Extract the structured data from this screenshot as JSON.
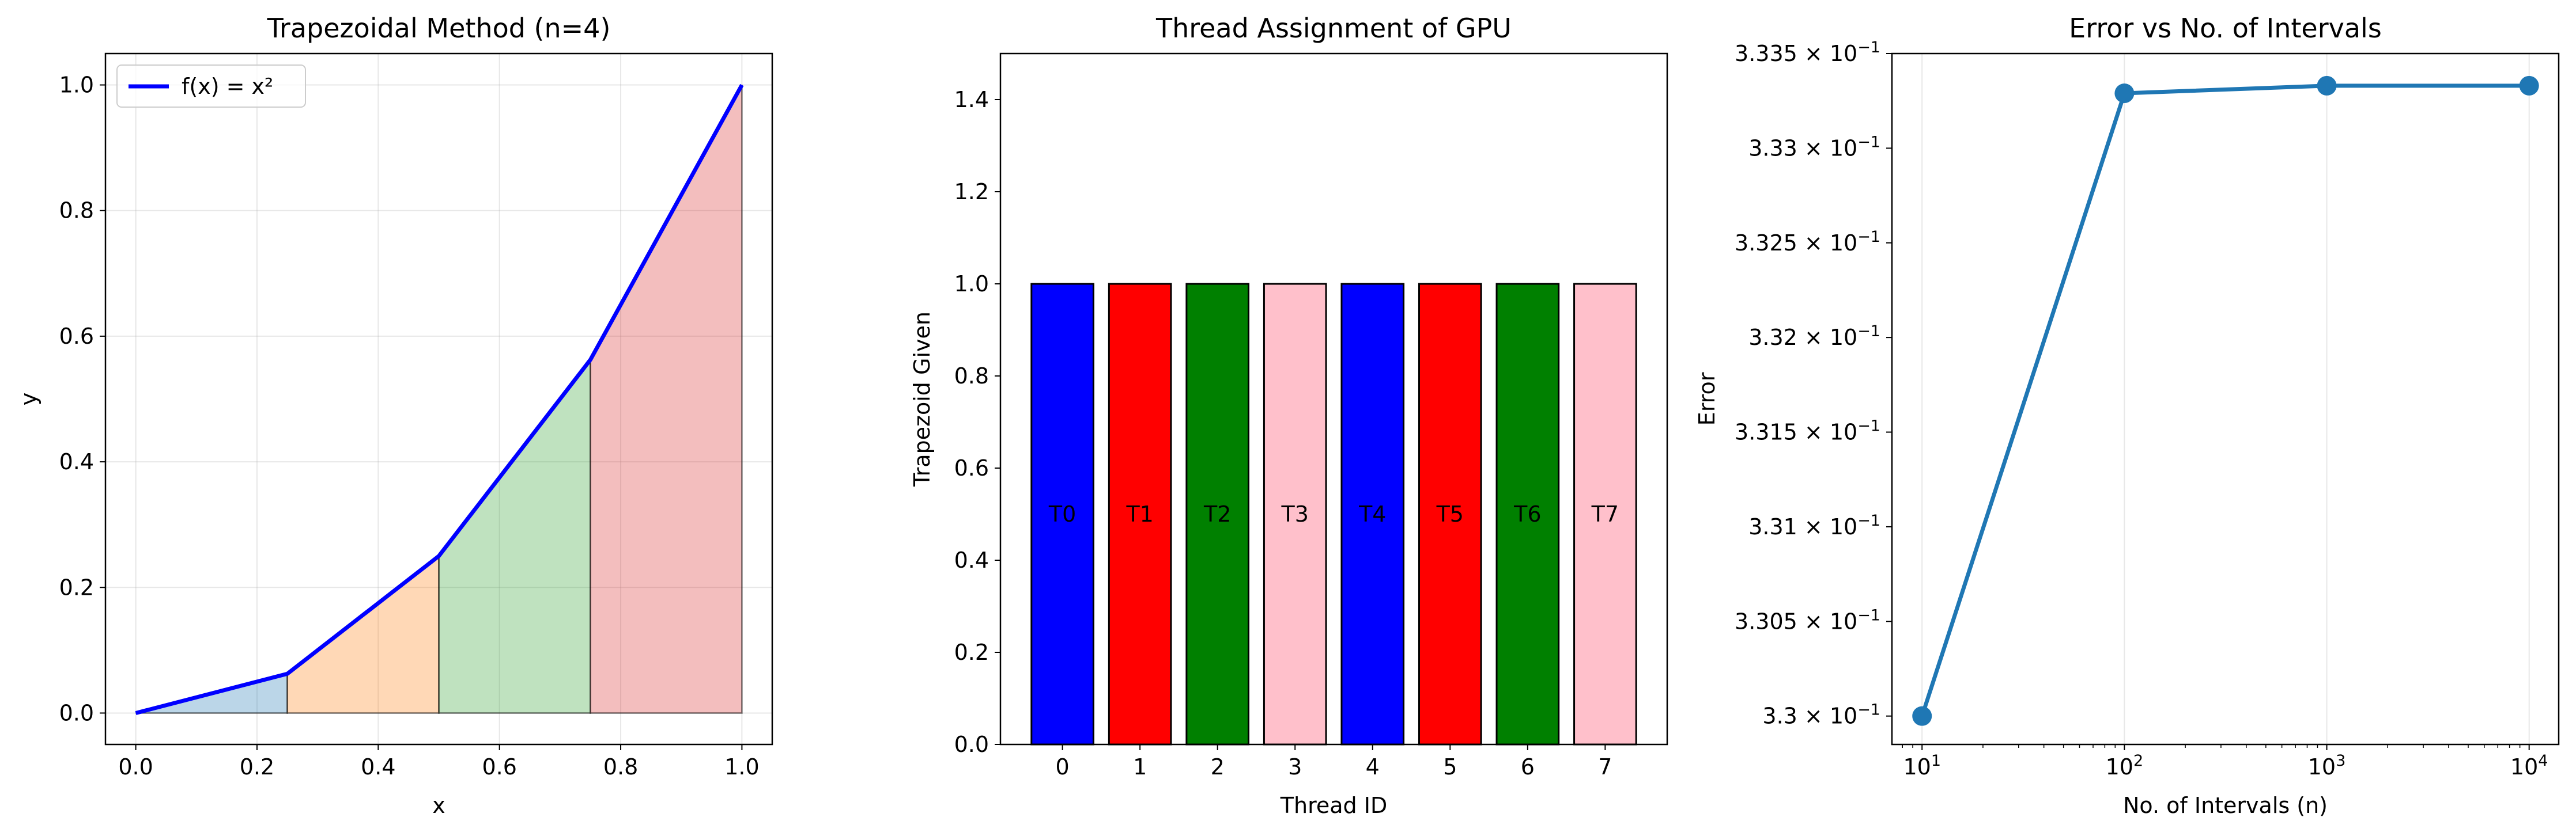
{
  "chart_data": [
    {
      "type": "area",
      "title": "Trapezoidal Method (n=4)",
      "xlabel": "x",
      "ylabel": "y",
      "xlim": [
        -0.05,
        1.05
      ],
      "ylim": [
        -0.05,
        1.05
      ],
      "xticks": [
        0.0,
        0.2,
        0.4,
        0.6,
        0.8,
        1.0
      ],
      "xtick_labels": [
        "0.0",
        "0.2",
        "0.4",
        "0.6",
        "0.8",
        "1.0"
      ],
      "yticks": [
        0.0,
        0.2,
        0.4,
        0.6,
        0.8,
        1.0
      ],
      "ytick_labels": [
        "0.0",
        "0.2",
        "0.4",
        "0.6",
        "0.8",
        "1.0"
      ],
      "grid": true,
      "legend_placement": "upper-left",
      "series": [
        {
          "name": "f(x) = x²",
          "x": [
            0.0,
            0.25,
            0.5,
            0.75,
            1.0
          ],
          "y": [
            0.0,
            0.0625,
            0.25,
            0.5625,
            1.0
          ],
          "color": "#0000ff"
        }
      ],
      "trapezoids": [
        {
          "x0": 0.0,
          "x1": 0.25,
          "y0": 0.0,
          "y1": 0.0625,
          "color": "#1f77b4"
        },
        {
          "x0": 0.25,
          "x1": 0.5,
          "y0": 0.0625,
          "y1": 0.25,
          "color": "#ff7f0e"
        },
        {
          "x0": 0.5,
          "x1": 0.75,
          "y0": 0.25,
          "y1": 0.5625,
          "color": "#2ca02c"
        },
        {
          "x0": 0.75,
          "x1": 1.0,
          "y0": 0.5625,
          "y1": 1.0,
          "color": "#d62728"
        }
      ]
    },
    {
      "type": "bar",
      "title": "Thread Assignment of GPU",
      "xlabel": "Thread ID",
      "ylabel": "Trapezoid Given",
      "categories": [
        "0",
        "1",
        "2",
        "3",
        "4",
        "5",
        "6",
        "7"
      ],
      "values": [
        1,
        1,
        1,
        1,
        1,
        1,
        1,
        1
      ],
      "bar_labels": [
        "T0",
        "T1",
        "T2",
        "T3",
        "T4",
        "T5",
        "T6",
        "T7"
      ],
      "colors": [
        "#0000ff",
        "#ff0000",
        "#008000",
        "#ffc0cb",
        "#0000ff",
        "#ff0000",
        "#008000",
        "#ffc0cb"
      ],
      "ylim": [
        0,
        1.5
      ],
      "yticks": [
        0.0,
        0.2,
        0.4,
        0.6,
        0.8,
        1.0,
        1.2,
        1.4
      ],
      "ytick_labels": [
        "0.0",
        "0.2",
        "0.4",
        "0.6",
        "0.8",
        "1.0",
        "1.2",
        "1.4"
      ],
      "grid": false
    },
    {
      "type": "line",
      "title": "Error vs No. of Intervals",
      "xlabel": "No. of Intervals (n)",
      "ylabel": "Error",
      "xscale": "log",
      "yscale": "log",
      "x": [
        10,
        100,
        1000,
        10000
      ],
      "series": [
        {
          "values": [
            0.33,
            0.33329,
            0.33333,
            0.33333
          ],
          "color": "#1f77b4"
        }
      ],
      "xlim": [
        7.1,
        14000
      ],
      "ylim": [
        0.32985,
        0.3335
      ],
      "xticks": [
        10,
        100,
        1000,
        10000
      ],
      "xtick_labels": [
        {
          "base": "10",
          "exp": "1"
        },
        {
          "base": "10",
          "exp": "2"
        },
        {
          "base": "10",
          "exp": "3"
        },
        {
          "base": "10",
          "exp": "4"
        }
      ],
      "yticks": [
        0.33,
        0.3305,
        0.331,
        0.3315,
        0.332,
        0.3325,
        0.333,
        0.3335
      ],
      "ytick_labels": [
        {
          "mant": "3.3",
          "base": "10",
          "exp": "−1"
        },
        {
          "mant": "3.305",
          "base": "10",
          "exp": "−1"
        },
        {
          "mant": "3.31",
          "base": "10",
          "exp": "−1"
        },
        {
          "mant": "3.315",
          "base": "10",
          "exp": "−1"
        },
        {
          "mant": "3.32",
          "base": "10",
          "exp": "−1"
        },
        {
          "mant": "3.325",
          "base": "10",
          "exp": "−1"
        },
        {
          "mant": "3.33",
          "base": "10",
          "exp": "−1"
        },
        {
          "mant": "3.335",
          "base": "10",
          "exp": "−1"
        }
      ],
      "grid": "x-only"
    }
  ]
}
